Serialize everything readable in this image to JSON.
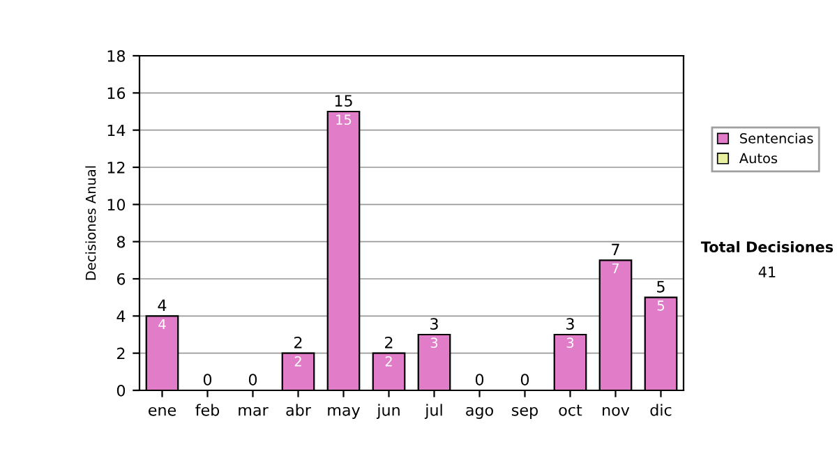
{
  "chart_data": {
    "type": "bar",
    "stacked": true,
    "ylabel": "Decisiones Anual",
    "categories": [
      "ene",
      "feb",
      "mar",
      "abr",
      "may",
      "jun",
      "jul",
      "ago",
      "sep",
      "oct",
      "nov",
      "dic"
    ],
    "series": [
      {
        "name": "Sentencias",
        "color": "#e07cc8",
        "values": [
          4,
          0,
          0,
          2,
          15,
          2,
          3,
          0,
          0,
          3,
          7,
          5
        ],
        "value_labels": [
          "4",
          null,
          null,
          "2",
          "15",
          "2",
          "3",
          null,
          null,
          "3",
          "7",
          "5"
        ]
      },
      {
        "name": "Autos",
        "color": "#e8f0a0",
        "values": [
          0,
          0,
          0,
          0,
          0,
          0,
          0,
          0,
          0,
          0,
          0,
          0
        ]
      }
    ],
    "totals": [
      "4",
      "0",
      "0",
      "2",
      "15",
      "2",
      "3",
      "0",
      "0",
      "3",
      "7",
      "5"
    ],
    "ylim": [
      0,
      18
    ],
    "yticks": [
      0,
      2,
      4,
      6,
      8,
      10,
      12,
      14,
      16,
      18
    ],
    "grid": "y",
    "legend": "right",
    "annotations": [
      "Total Decisiones",
      "41"
    ]
  }
}
